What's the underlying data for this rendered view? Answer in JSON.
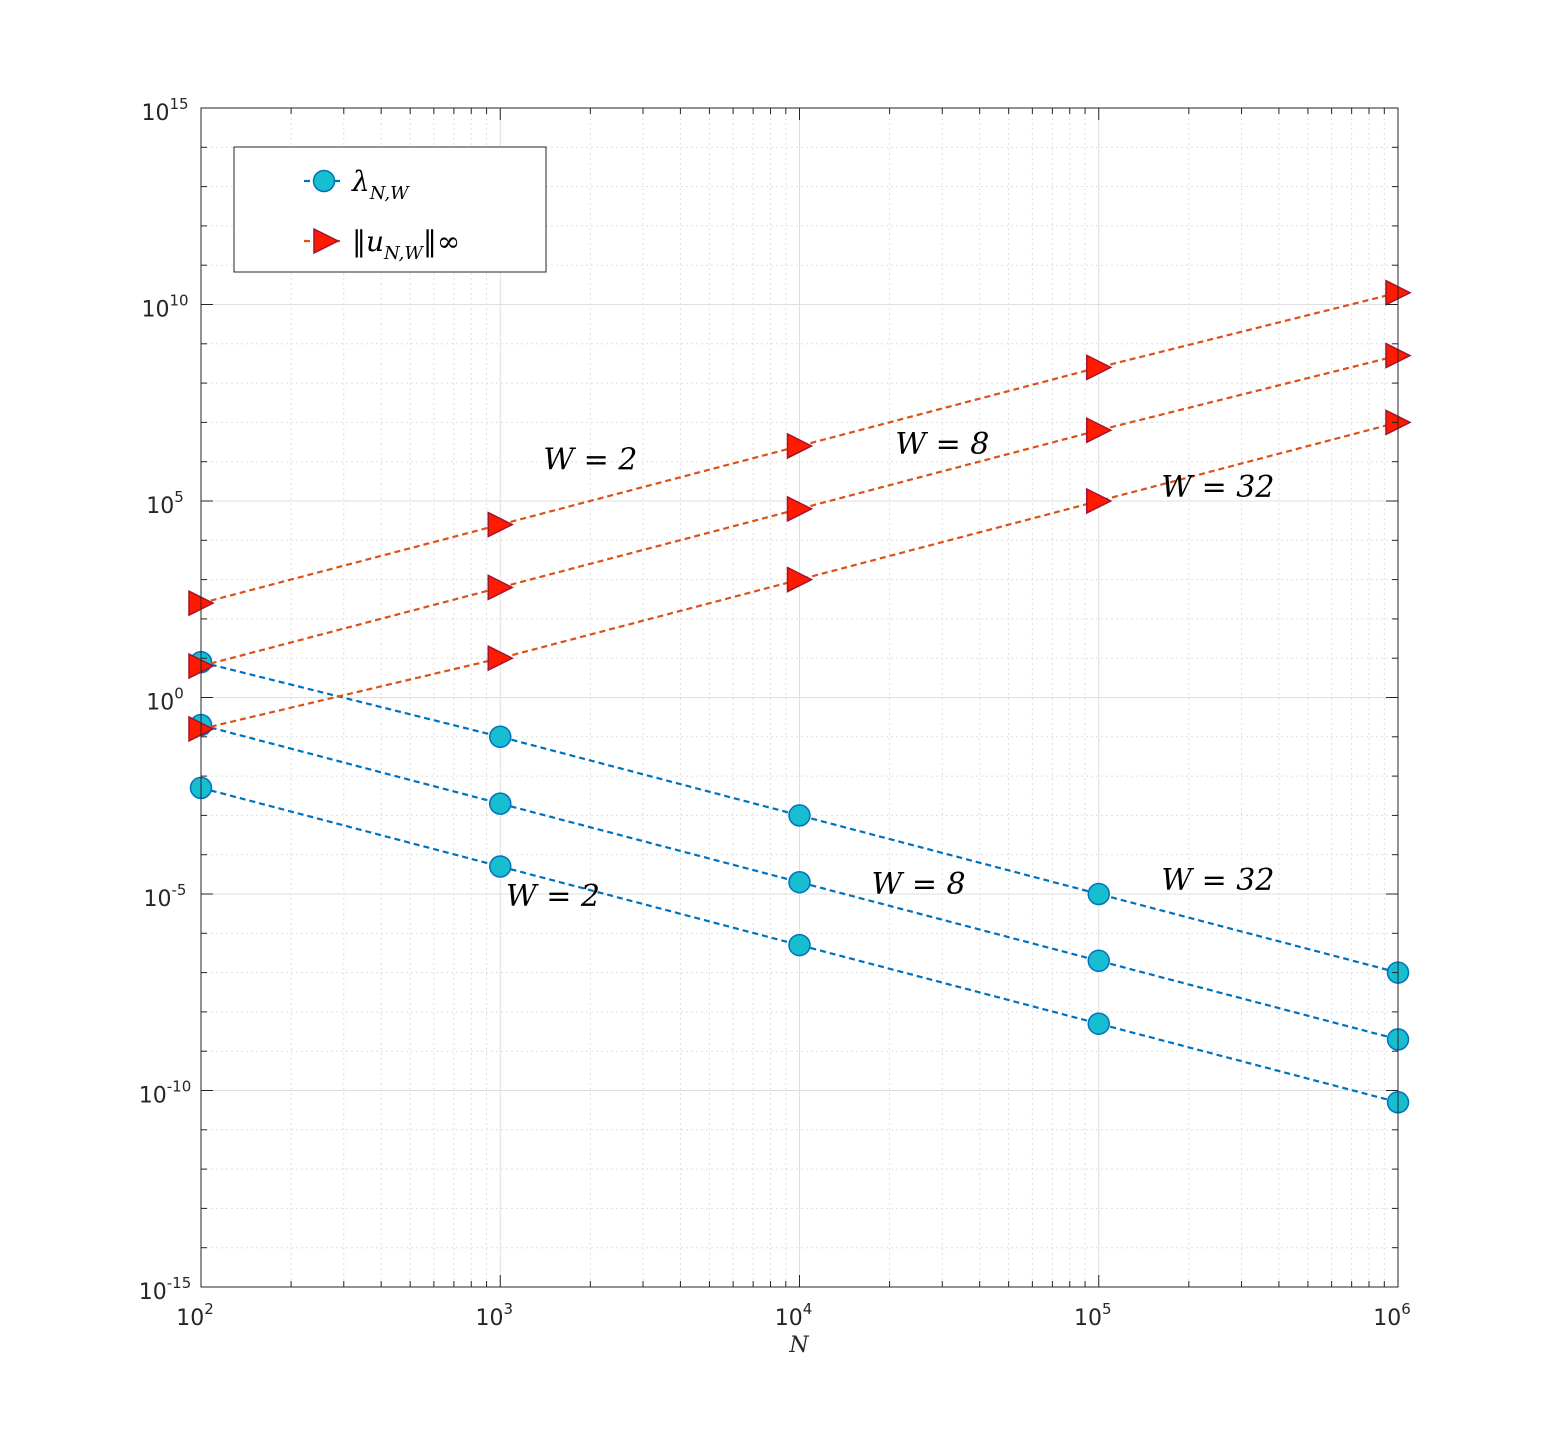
{
  "chart_data": {
    "type": "line",
    "scale": "log-log",
    "xlabel": "N",
    "ylabel": "",
    "xlim": [
      100,
      1000000
    ],
    "ylim": [
      1e-15,
      1000000000000000.0
    ],
    "x_ticks": [
      {
        "base": "10",
        "exp": "2"
      },
      {
        "base": "10",
        "exp": "3"
      },
      {
        "base": "10",
        "exp": "4"
      },
      {
        "base": "10",
        "exp": "5"
      },
      {
        "base": "10",
        "exp": "6"
      }
    ],
    "y_ticks": [
      {
        "base": "10",
        "exp": "-15"
      },
      {
        "base": "10",
        "exp": "-10"
      },
      {
        "base": "10",
        "exp": "-5"
      },
      {
        "base": "10",
        "exp": "0"
      },
      {
        "base": "10",
        "exp": "5"
      },
      {
        "base": "10",
        "exp": "10"
      },
      {
        "base": "10",
        "exp": "15"
      }
    ],
    "grid": true,
    "x": [
      100,
      1000,
      10000,
      100000,
      1000000
    ],
    "series": [
      {
        "name": "λ_{N,W}",
        "group": "lambda",
        "W": 2,
        "color": "#0072BD",
        "marker": "circle",
        "log10_values": [
          -2.3,
          -4.3,
          -6.3,
          -8.3,
          -10.3
        ]
      },
      {
        "name": "λ_{N,W}",
        "group": "lambda",
        "W": 8,
        "color": "#0072BD",
        "marker": "circle",
        "log10_values": [
          -0.7,
          -2.7,
          -4.7,
          -6.7,
          -8.7
        ]
      },
      {
        "name": "λ_{N,W}",
        "group": "lambda",
        "W": 32,
        "color": "#0072BD",
        "marker": "circle",
        "log10_values": [
          0.9,
          -1.0,
          -3.0,
          -5.0,
          -7.0
        ]
      },
      {
        "name": "‖u_{N,W}‖_∞",
        "group": "u",
        "W": 2,
        "color": "#D95319",
        "marker": "triangle-right",
        "log10_values": [
          2.4,
          4.4,
          6.4,
          8.4,
          10.3
        ]
      },
      {
        "name": "‖u_{N,W}‖_∞",
        "group": "u",
        "W": 8,
        "color": "#D95319",
        "marker": "triangle-right",
        "log10_values": [
          0.8,
          2.8,
          4.8,
          6.8,
          8.7
        ]
      },
      {
        "name": "‖u_{N,W}‖_∞",
        "group": "u",
        "W": 32,
        "color": "#D95319",
        "marker": "triangle-right",
        "log10_values": [
          -0.8,
          1.0,
          3.0,
          5.0,
          7.0
        ]
      }
    ],
    "legend": {
      "placement": "top-left",
      "entries": [
        {
          "symbol": "λ",
          "sub": "N,W",
          "suffix": "",
          "color": "#0072BD",
          "marker": "circle"
        },
        {
          "symbol": "‖u",
          "sub": "N,W",
          "suffix": "‖∞",
          "color": "#D95319",
          "marker": "triangle-right"
        }
      ]
    },
    "annotations": [
      {
        "text": "W = 2",
        "group": "u",
        "near_x": 2000,
        "near_log10_y": 5.8
      },
      {
        "text": "W = 8",
        "group": "u",
        "near_x": 30000,
        "near_log10_y": 6.2
      },
      {
        "text": "W = 32",
        "group": "u",
        "near_x": 250000,
        "near_log10_y": 5.1
      },
      {
        "text": "W = 2",
        "group": "lambda",
        "near_x": 1500,
        "near_log10_y": -5.3
      },
      {
        "text": "W = 8",
        "group": "lambda",
        "near_x": 25000,
        "near_log10_y": -5.0
      },
      {
        "text": "W = 32",
        "group": "lambda",
        "near_x": 250000,
        "near_log10_y": -4.9
      }
    ],
    "colors": {
      "lambda_line": "#0072BD",
      "lambda_fill": "#17BECF",
      "u_line": "#D95319",
      "u_fill": "#FF1A00",
      "grid": "#dfdfdf"
    }
  }
}
